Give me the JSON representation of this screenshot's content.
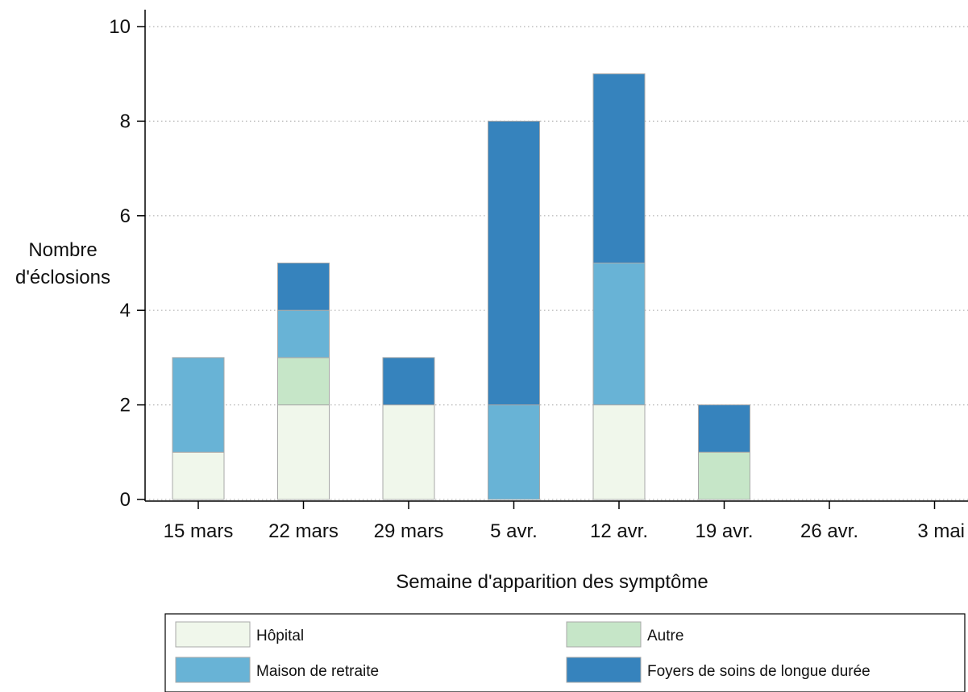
{
  "chart_data": {
    "type": "bar",
    "stacked": true,
    "title": "",
    "xlabel": "Semaine d'apparition des symptôme",
    "ylabel_lines": [
      "Nombre",
      "d'éclosions"
    ],
    "ylim": [
      0,
      10
    ],
    "yticks": [
      0,
      2,
      4,
      6,
      8,
      10
    ],
    "grid": true,
    "legend_position": "bottom",
    "categories": [
      "15 mars",
      "22 mars",
      "29 mars",
      "5 avr.",
      "12 avr.",
      "19 avr.",
      "26 avr.",
      "3 mai"
    ],
    "series": [
      {
        "name": "Hôpital",
        "color": "#f0f7eb",
        "values": [
          1,
          2,
          2,
          0,
          2,
          0,
          0,
          0
        ]
      },
      {
        "name": "Autre",
        "color": "#c6e6c8",
        "values": [
          0,
          1,
          0,
          0,
          0,
          1,
          0,
          0
        ]
      },
      {
        "name": "Maison de retraite",
        "color": "#68b3d6",
        "values": [
          2,
          1,
          0,
          2,
          3,
          0,
          0,
          0
        ]
      },
      {
        "name": "Foyers de soins de longue durée",
        "color": "#3683bd",
        "values": [
          0,
          1,
          1,
          6,
          4,
          1,
          0,
          0
        ]
      }
    ],
    "legend_order": [
      "Hôpital",
      "Autre",
      "Maison de retraite",
      "Foyers de soins de longue durée"
    ]
  }
}
